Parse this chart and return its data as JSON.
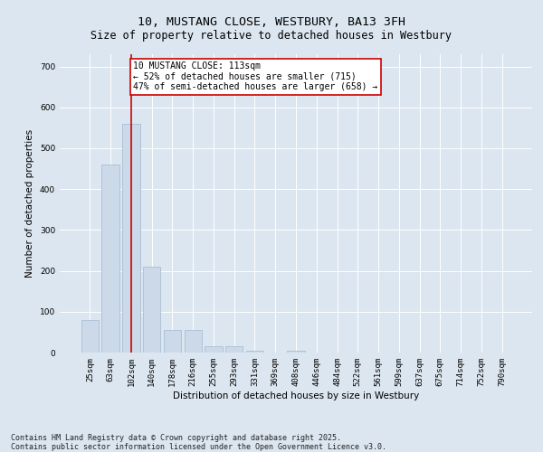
{
  "title_line1": "10, MUSTANG CLOSE, WESTBURY, BA13 3FH",
  "title_line2": "Size of property relative to detached houses in Westbury",
  "xlabel": "Distribution of detached houses by size in Westbury",
  "ylabel": "Number of detached properties",
  "categories": [
    "25sqm",
    "63sqm",
    "102sqm",
    "140sqm",
    "178sqm",
    "216sqm",
    "255sqm",
    "293sqm",
    "331sqm",
    "369sqm",
    "408sqm",
    "446sqm",
    "484sqm",
    "522sqm",
    "561sqm",
    "599sqm",
    "637sqm",
    "675sqm",
    "714sqm",
    "752sqm",
    "790sqm"
  ],
  "values": [
    80,
    460,
    560,
    210,
    55,
    55,
    15,
    15,
    5,
    0,
    5,
    0,
    0,
    0,
    0,
    0,
    0,
    0,
    0,
    0,
    0
  ],
  "bar_color": "#ccd9e8",
  "bar_edge_color": "#a0b8d0",
  "vline_x": 2,
  "vline_color": "#cc0000",
  "annotation_text": "10 MUSTANG CLOSE: 113sqm\n← 52% of detached houses are smaller (715)\n47% of semi-detached houses are larger (658) →",
  "annotation_box_color": "#ffffff",
  "annotation_box_edge_color": "#cc0000",
  "ylim": [
    0,
    730
  ],
  "yticks": [
    0,
    100,
    200,
    300,
    400,
    500,
    600,
    700
  ],
  "background_color": "#dce6f0",
  "grid_color": "#ffffff",
  "footer_line1": "Contains HM Land Registry data © Crown copyright and database right 2025.",
  "footer_line2": "Contains public sector information licensed under the Open Government Licence v3.0.",
  "title_fontsize": 9.5,
  "subtitle_fontsize": 8.5,
  "axis_label_fontsize": 7.5,
  "tick_fontsize": 6.5,
  "annotation_fontsize": 7,
  "footer_fontsize": 6
}
